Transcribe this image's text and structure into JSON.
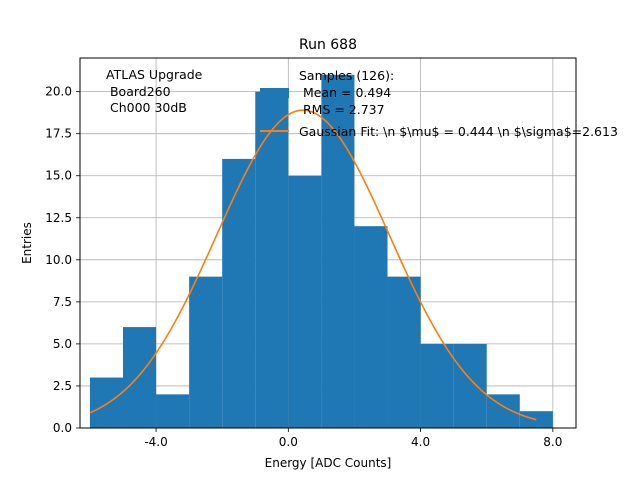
{
  "chart_data": {
    "type": "bar",
    "title": "Run 688",
    "xlabel": "Energy [ADC Counts]",
    "ylabel": "Entries",
    "xlim": [
      -6.3,
      8.7
    ],
    "ylim": [
      0,
      22
    ],
    "grid": true,
    "xticks": [
      {
        "value": -4,
        "label": "-4.0"
      },
      {
        "value": 0,
        "label": "0.0"
      },
      {
        "value": 4,
        "label": "4.0"
      },
      {
        "value": 8,
        "label": "8.0"
      }
    ],
    "yticks": [
      {
        "value": 0,
        "label": "0.0"
      },
      {
        "value": 2.5,
        "label": "2.5"
      },
      {
        "value": 5,
        "label": "5.0"
      },
      {
        "value": 7.5,
        "label": "7.5"
      },
      {
        "value": 10,
        "label": "10.0"
      },
      {
        "value": 12.5,
        "label": "12.5"
      },
      {
        "value": 15,
        "label": "15.0"
      },
      {
        "value": 17.5,
        "label": "17.5"
      },
      {
        "value": 20,
        "label": "20.0"
      }
    ],
    "histogram": {
      "name": "Samples (126)",
      "color": "#1f77b4",
      "bins": [
        {
          "x0": -6,
          "x1": -5,
          "count": 3
        },
        {
          "x0": -5,
          "x1": -4,
          "count": 6
        },
        {
          "x0": -4,
          "x1": -3,
          "count": 2
        },
        {
          "x0": -3,
          "x1": -2,
          "count": 9
        },
        {
          "x0": -2,
          "x1": -1,
          "count": 16
        },
        {
          "x0": -1,
          "x1": 0,
          "count": 20
        },
        {
          "x0": 0,
          "x1": 1,
          "count": 15
        },
        {
          "x0": 1,
          "x1": 2,
          "count": 21
        },
        {
          "x0": 2,
          "x1": 3,
          "count": 12
        },
        {
          "x0": 3,
          "x1": 4,
          "count": 9
        },
        {
          "x0": 4,
          "x1": 5,
          "count": 5
        },
        {
          "x0": 5,
          "x1": 6,
          "count": 5
        },
        {
          "x0": 6,
          "x1": 7,
          "count": 2
        },
        {
          "x0": 7,
          "x1": 8,
          "count": 1
        }
      ]
    },
    "fit": {
      "name": "Gaussian Fit",
      "color": "#ff7f0e",
      "amplitude": 18.9,
      "mu": 0.444,
      "sigma": 2.613,
      "x_range": [
        -6,
        7.5
      ]
    },
    "legend": {
      "placement": "top-right",
      "hist_lines": [
        "Samples (126):",
        " Mean = 0.494",
        " RMS = 2.737"
      ],
      "fit_label": "Gaussian Fit: \\n $\\mu$ = 0.444 \\n $\\sigma$=2.613"
    },
    "annotation": {
      "placement": "top-left",
      "lines": [
        "ATLAS Upgrade",
        " Board260",
        " Ch000 30dB"
      ]
    }
  }
}
